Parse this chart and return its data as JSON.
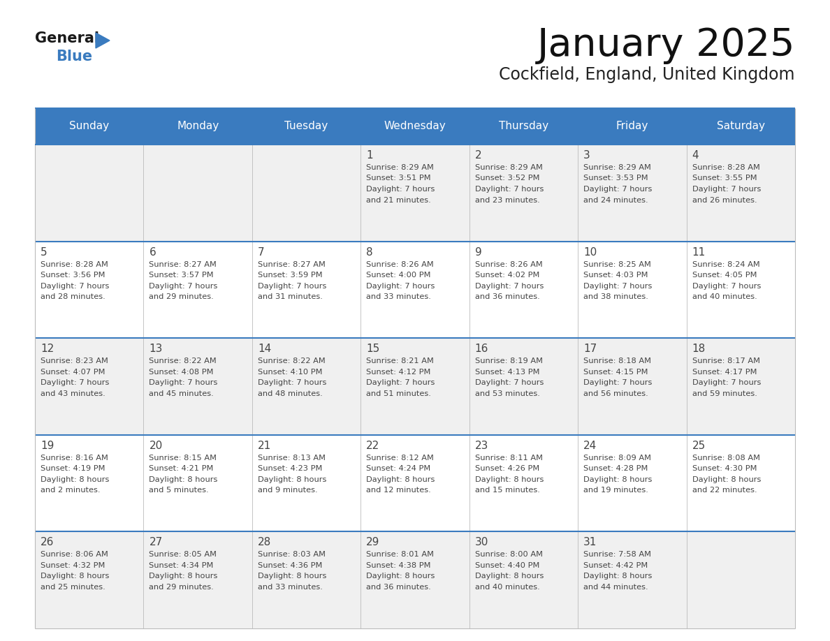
{
  "title": "January 2025",
  "subtitle": "Cockfield, England, United Kingdom",
  "header_bg": "#3a7bbf",
  "header_text_color": "#ffffff",
  "days_of_week": [
    "Sunday",
    "Monday",
    "Tuesday",
    "Wednesday",
    "Thursday",
    "Friday",
    "Saturday"
  ],
  "row_bg_light": "#f0f0f0",
  "row_bg_white": "#ffffff",
  "cell_text_color": "#444444",
  "grid_line_color": "#3a7bbf",
  "border_color": "#aaaaaa",
  "calendar": [
    [
      {
        "day": "",
        "lines": []
      },
      {
        "day": "",
        "lines": []
      },
      {
        "day": "",
        "lines": []
      },
      {
        "day": "1",
        "lines": [
          "Sunrise: 8:29 AM",
          "Sunset: 3:51 PM",
          "Daylight: 7 hours",
          "and 21 minutes."
        ]
      },
      {
        "day": "2",
        "lines": [
          "Sunrise: 8:29 AM",
          "Sunset: 3:52 PM",
          "Daylight: 7 hours",
          "and 23 minutes."
        ]
      },
      {
        "day": "3",
        "lines": [
          "Sunrise: 8:29 AM",
          "Sunset: 3:53 PM",
          "Daylight: 7 hours",
          "and 24 minutes."
        ]
      },
      {
        "day": "4",
        "lines": [
          "Sunrise: 8:28 AM",
          "Sunset: 3:55 PM",
          "Daylight: 7 hours",
          "and 26 minutes."
        ]
      }
    ],
    [
      {
        "day": "5",
        "lines": [
          "Sunrise: 8:28 AM",
          "Sunset: 3:56 PM",
          "Daylight: 7 hours",
          "and 28 minutes."
        ]
      },
      {
        "day": "6",
        "lines": [
          "Sunrise: 8:27 AM",
          "Sunset: 3:57 PM",
          "Daylight: 7 hours",
          "and 29 minutes."
        ]
      },
      {
        "day": "7",
        "lines": [
          "Sunrise: 8:27 AM",
          "Sunset: 3:59 PM",
          "Daylight: 7 hours",
          "and 31 minutes."
        ]
      },
      {
        "day": "8",
        "lines": [
          "Sunrise: 8:26 AM",
          "Sunset: 4:00 PM",
          "Daylight: 7 hours",
          "and 33 minutes."
        ]
      },
      {
        "day": "9",
        "lines": [
          "Sunrise: 8:26 AM",
          "Sunset: 4:02 PM",
          "Daylight: 7 hours",
          "and 36 minutes."
        ]
      },
      {
        "day": "10",
        "lines": [
          "Sunrise: 8:25 AM",
          "Sunset: 4:03 PM",
          "Daylight: 7 hours",
          "and 38 minutes."
        ]
      },
      {
        "day": "11",
        "lines": [
          "Sunrise: 8:24 AM",
          "Sunset: 4:05 PM",
          "Daylight: 7 hours",
          "and 40 minutes."
        ]
      }
    ],
    [
      {
        "day": "12",
        "lines": [
          "Sunrise: 8:23 AM",
          "Sunset: 4:07 PM",
          "Daylight: 7 hours",
          "and 43 minutes."
        ]
      },
      {
        "day": "13",
        "lines": [
          "Sunrise: 8:22 AM",
          "Sunset: 4:08 PM",
          "Daylight: 7 hours",
          "and 45 minutes."
        ]
      },
      {
        "day": "14",
        "lines": [
          "Sunrise: 8:22 AM",
          "Sunset: 4:10 PM",
          "Daylight: 7 hours",
          "and 48 minutes."
        ]
      },
      {
        "day": "15",
        "lines": [
          "Sunrise: 8:21 AM",
          "Sunset: 4:12 PM",
          "Daylight: 7 hours",
          "and 51 minutes."
        ]
      },
      {
        "day": "16",
        "lines": [
          "Sunrise: 8:19 AM",
          "Sunset: 4:13 PM",
          "Daylight: 7 hours",
          "and 53 minutes."
        ]
      },
      {
        "day": "17",
        "lines": [
          "Sunrise: 8:18 AM",
          "Sunset: 4:15 PM",
          "Daylight: 7 hours",
          "and 56 minutes."
        ]
      },
      {
        "day": "18",
        "lines": [
          "Sunrise: 8:17 AM",
          "Sunset: 4:17 PM",
          "Daylight: 7 hours",
          "and 59 minutes."
        ]
      }
    ],
    [
      {
        "day": "19",
        "lines": [
          "Sunrise: 8:16 AM",
          "Sunset: 4:19 PM",
          "Daylight: 8 hours",
          "and 2 minutes."
        ]
      },
      {
        "day": "20",
        "lines": [
          "Sunrise: 8:15 AM",
          "Sunset: 4:21 PM",
          "Daylight: 8 hours",
          "and 5 minutes."
        ]
      },
      {
        "day": "21",
        "lines": [
          "Sunrise: 8:13 AM",
          "Sunset: 4:23 PM",
          "Daylight: 8 hours",
          "and 9 minutes."
        ]
      },
      {
        "day": "22",
        "lines": [
          "Sunrise: 8:12 AM",
          "Sunset: 4:24 PM",
          "Daylight: 8 hours",
          "and 12 minutes."
        ]
      },
      {
        "day": "23",
        "lines": [
          "Sunrise: 8:11 AM",
          "Sunset: 4:26 PM",
          "Daylight: 8 hours",
          "and 15 minutes."
        ]
      },
      {
        "day": "24",
        "lines": [
          "Sunrise: 8:09 AM",
          "Sunset: 4:28 PM",
          "Daylight: 8 hours",
          "and 19 minutes."
        ]
      },
      {
        "day": "25",
        "lines": [
          "Sunrise: 8:08 AM",
          "Sunset: 4:30 PM",
          "Daylight: 8 hours",
          "and 22 minutes."
        ]
      }
    ],
    [
      {
        "day": "26",
        "lines": [
          "Sunrise: 8:06 AM",
          "Sunset: 4:32 PM",
          "Daylight: 8 hours",
          "and 25 minutes."
        ]
      },
      {
        "day": "27",
        "lines": [
          "Sunrise: 8:05 AM",
          "Sunset: 4:34 PM",
          "Daylight: 8 hours",
          "and 29 minutes."
        ]
      },
      {
        "day": "28",
        "lines": [
          "Sunrise: 8:03 AM",
          "Sunset: 4:36 PM",
          "Daylight: 8 hours",
          "and 33 minutes."
        ]
      },
      {
        "day": "29",
        "lines": [
          "Sunrise: 8:01 AM",
          "Sunset: 4:38 PM",
          "Daylight: 8 hours",
          "and 36 minutes."
        ]
      },
      {
        "day": "30",
        "lines": [
          "Sunrise: 8:00 AM",
          "Sunset: 4:40 PM",
          "Daylight: 8 hours",
          "and 40 minutes."
        ]
      },
      {
        "day": "31",
        "lines": [
          "Sunrise: 7:58 AM",
          "Sunset: 4:42 PM",
          "Daylight: 8 hours",
          "and 44 minutes."
        ]
      },
      {
        "day": "",
        "lines": []
      }
    ]
  ],
  "logo_general_color": "#1a1a1a",
  "logo_blue_color": "#3a7bbf",
  "logo_triangle_color": "#3a7bbf"
}
